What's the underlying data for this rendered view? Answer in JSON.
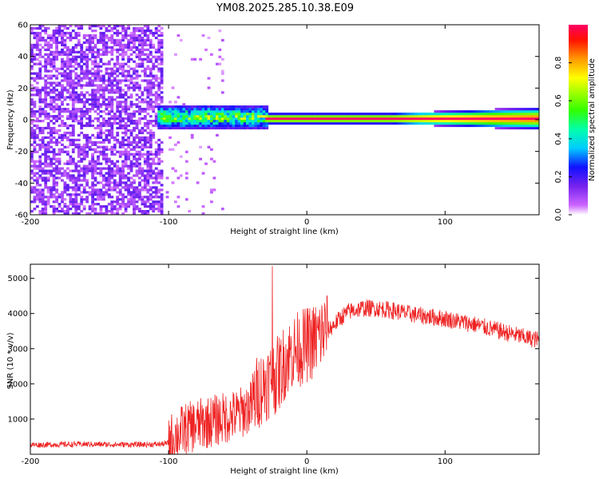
{
  "title": "YM08.2025.285.10.38.E09",
  "chart_data": [
    {
      "type": "heatmap",
      "xlabel": "Height of straight line (km)",
      "ylabel": "Frequency (Hz)",
      "xlim": [
        -200,
        168
      ],
      "ylim": [
        -60,
        60
      ],
      "xticks": [
        -200,
        -100,
        0,
        100
      ],
      "yticks": [
        -60,
        -40,
        -20,
        0,
        20,
        40,
        60
      ],
      "colorbar": {
        "label": "Normalized spectral amplitude",
        "range": [
          0.0,
          1.0
        ],
        "ticks": [
          0.0,
          0.2,
          0.4,
          0.6,
          0.8
        ],
        "tick_labels": [
          "0.0",
          "0.2",
          "0.4",
          "0.6",
          "0.8"
        ]
      },
      "features": [
        {
          "name": "broadband noise",
          "x_range": [
            -200,
            -105
          ],
          "amplitude": 0.1
        },
        {
          "name": "sparse noise",
          "x_range": [
            -105,
            -60
          ],
          "amplitude": 0.03
        },
        {
          "name": "scattered signal band",
          "x_range": [
            -108,
            -28
          ],
          "freq_center": 1,
          "freq_half_width": 8,
          "amplitude": 0.55
        },
        {
          "name": "narrow carrier line",
          "x_range": [
            -30,
            168
          ],
          "freq_center": 0,
          "freq_half_width": 2,
          "amplitude": 0.95
        }
      ]
    },
    {
      "type": "line",
      "xlabel": "Height of straight line (km)",
      "ylabel": "SNR (10 * v/v)",
      "xlim": [
        -200,
        168
      ],
      "ylim": [
        0,
        5400
      ],
      "xticks": [
        -200,
        -100,
        0,
        100
      ],
      "yticks": [
        1000,
        2000,
        3000,
        4000,
        5000
      ],
      "series": [
        {
          "name": "SNR",
          "color": "#ee2222",
          "x": [
            -200,
            -180,
            -160,
            -140,
            -120,
            -105,
            -100,
            -95,
            -90,
            -80,
            -70,
            -60,
            -50,
            -40,
            -35,
            -30,
            -27,
            -25,
            -20,
            -15,
            -10,
            -5,
            0,
            5,
            10,
            15,
            20,
            25,
            30,
            35,
            40,
            50,
            60,
            80,
            100,
            120,
            140,
            160,
            168
          ],
          "values": [
            250,
            260,
            270,
            260,
            260,
            270,
            300,
            450,
            600,
            750,
            850,
            950,
            1050,
            1300,
            1700,
            1900,
            2000,
            2050,
            2200,
            2600,
            2800,
            2900,
            3000,
            3100,
            3300,
            3500,
            3700,
            3900,
            4050,
            4100,
            4150,
            4150,
            4100,
            3950,
            3850,
            3700,
            3500,
            3300,
            3250
          ]
        }
      ]
    }
  ]
}
